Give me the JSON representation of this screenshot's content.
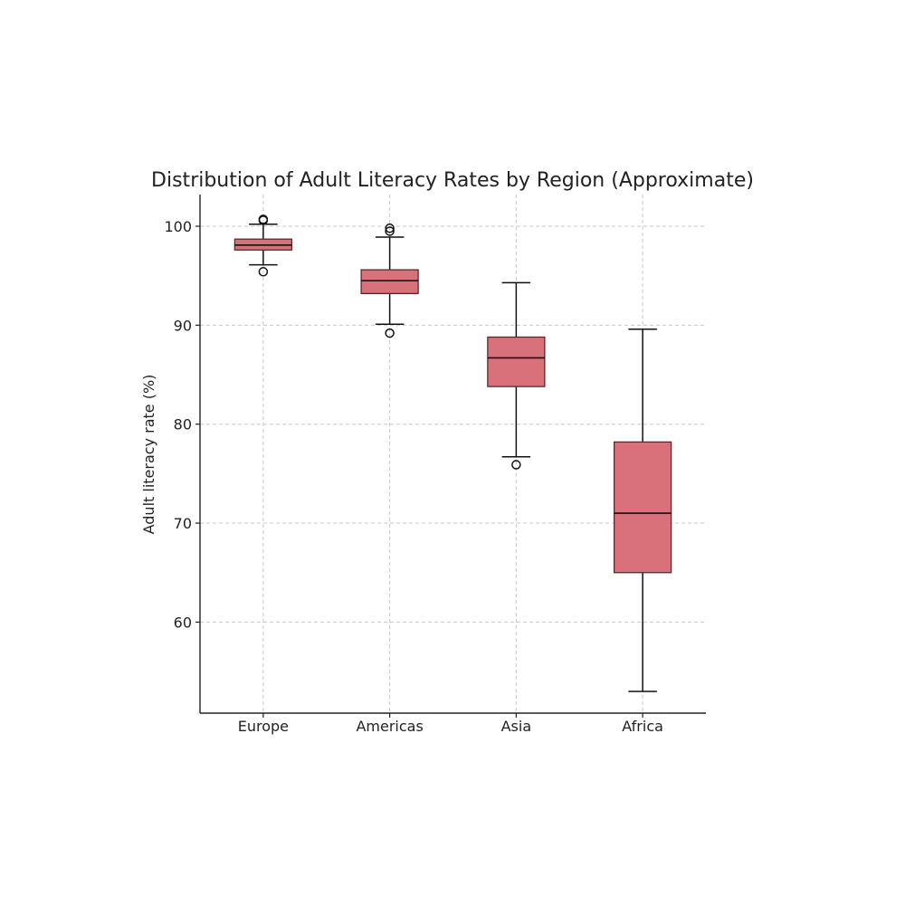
{
  "chart_data": {
    "type": "box",
    "title": "Distribution of Adult Literacy Rates by Region (Approximate)",
    "xlabel": "",
    "ylabel": "Adult literacy rate (%)",
    "ylim": [
      50.8,
      103.2
    ],
    "yticks": [
      60,
      70,
      80,
      90,
      100
    ],
    "grid": true,
    "box_color": "#d9717a",
    "categories": [
      "Europe",
      "Americas",
      "Asia",
      "Africa"
    ],
    "boxes": [
      {
        "category": "Europe",
        "whisker_low": 96.1,
        "q1": 97.6,
        "median": 98.1,
        "q3": 98.7,
        "whisker_high": 100.2,
        "fliers": [
          95.4,
          100.6,
          100.7
        ]
      },
      {
        "category": "Americas",
        "whisker_low": 90.1,
        "q1": 93.2,
        "median": 94.5,
        "q3": 95.6,
        "whisker_high": 98.9,
        "fliers": [
          89.2,
          99.5,
          99.8
        ]
      },
      {
        "category": "Asia",
        "whisker_low": 76.7,
        "q1": 83.8,
        "median": 86.7,
        "q3": 88.8,
        "whisker_high": 94.3,
        "fliers": [
          75.9
        ]
      },
      {
        "category": "Africa",
        "whisker_low": 53.0,
        "q1": 65.0,
        "median": 71.0,
        "q3": 78.2,
        "whisker_high": 89.6,
        "fliers": []
      }
    ]
  }
}
